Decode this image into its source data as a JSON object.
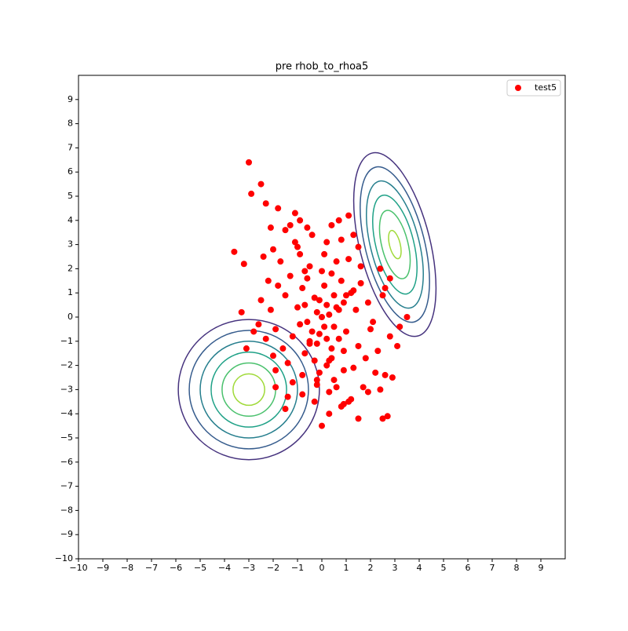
{
  "chart_data": {
    "type": "scatter",
    "title": "pre rhob_to_rhoa5",
    "xlim": [
      -10,
      10
    ],
    "ylim": [
      -10,
      10
    ],
    "xticks": [
      {
        "value": -10,
        "label": "−10"
      },
      {
        "value": -9,
        "label": "−9"
      },
      {
        "value": -8,
        "label": "−8"
      },
      {
        "value": -7,
        "label": "−7"
      },
      {
        "value": -6,
        "label": "−6"
      },
      {
        "value": -5,
        "label": "−5"
      },
      {
        "value": -4,
        "label": "−4"
      },
      {
        "value": -3,
        "label": "−3"
      },
      {
        "value": -2,
        "label": "−2"
      },
      {
        "value": -1,
        "label": "−1"
      },
      0,
      1,
      2,
      3,
      4,
      5,
      6,
      7,
      8,
      9
    ],
    "yticks": [
      {
        "value": -10,
        "label": "−10"
      },
      {
        "value": -9,
        "label": "−9"
      },
      {
        "value": -8,
        "label": "−8"
      },
      {
        "value": -7,
        "label": "−7"
      },
      {
        "value": -6,
        "label": "−6"
      },
      {
        "value": -5,
        "label": "−5"
      },
      {
        "value": -4,
        "label": "−4"
      },
      {
        "value": -3,
        "label": "−3"
      },
      {
        "value": -2,
        "label": "−2"
      },
      {
        "value": -1,
        "label": "−1"
      },
      0,
      1,
      2,
      3,
      4,
      5,
      6,
      7,
      8,
      9
    ],
    "legend": "upper right",
    "contours": [
      {
        "center": [
          -3,
          -3
        ],
        "angle": 0,
        "ellipses": [
          {
            "rx": 2.9,
            "ry": 2.9,
            "color": "#46337e"
          },
          {
            "rx": 2.45,
            "ry": 2.45,
            "color": "#365c8d"
          },
          {
            "rx": 2.0,
            "ry": 2.0,
            "color": "#277f8e"
          },
          {
            "rx": 1.55,
            "ry": 1.55,
            "color": "#1fa187"
          },
          {
            "rx": 1.1,
            "ry": 1.1,
            "color": "#4ac16d"
          },
          {
            "rx": 0.65,
            "ry": 0.65,
            "color": "#a0da39"
          }
        ]
      },
      {
        "center": [
          3,
          3
        ],
        "angle": 14,
        "ellipses": [
          {
            "rx": 1.45,
            "ry": 3.9,
            "color": "#46337e"
          },
          {
            "rx": 1.22,
            "ry": 3.3,
            "color": "#365c8d"
          },
          {
            "rx": 1.0,
            "ry": 2.7,
            "color": "#277f8e"
          },
          {
            "rx": 0.78,
            "ry": 2.1,
            "color": "#1fa187"
          },
          {
            "rx": 0.54,
            "ry": 1.45,
            "color": "#4ac16d"
          },
          {
            "rx": 0.22,
            "ry": 0.6,
            "color": "#a0da39"
          }
        ]
      }
    ],
    "series": [
      {
        "name": "test5",
        "color": "#ff0000",
        "x": [
          0,
          0.2,
          -0.3,
          0.5,
          -0.6,
          0.1,
          -0.2,
          0.4,
          -0.8,
          0.7,
          -0.5,
          0.3,
          -1,
          1,
          0.1,
          -0.1,
          0.6,
          -0.7,
          1.2,
          -1.2,
          0.9,
          -0.9,
          0.2,
          -0.4,
          0.8,
          -1.3,
          1.4,
          1.5,
          -1.5,
          0.5,
          -0.2,
          0.9,
          -0.8,
          1.3,
          -1.4,
          0.3,
          0.6,
          1.1,
          1.6,
          -1.7,
          -1.1,
          1.3,
          0.4,
          -0.6,
          -1.5,
          1.6,
          1.9,
          2,
          1.8,
          2.2,
          -1.9,
          -2.1,
          -1.8,
          -2.2,
          -1.6,
          -1.9,
          -2.3,
          1.7,
          1.2,
          0.8,
          -0.3,
          2.4,
          2.6,
          2.8,
          2.5,
          2.4,
          -2.5,
          -2.6,
          -2.4,
          -2,
          -2.1,
          -1.3,
          -0.9,
          0.7,
          1.5,
          -2.8,
          0.1,
          -0.2,
          0.3,
          -0.1,
          0.2,
          -0.4,
          0.5,
          -0.6,
          0.4,
          0,
          -0.3,
          0.7,
          -0.7,
          0.8,
          -0.9,
          1,
          0.2,
          -0.5,
          -3,
          -2.9,
          -2.5,
          -2.3,
          -3.6,
          -3.2,
          -3.1,
          -3.3,
          0,
          2.7,
          2.5,
          1.5,
          3.5,
          3.1,
          3.2,
          1.1,
          2.8,
          -1.1,
          -1.8,
          -1.2,
          -1.9,
          -2,
          -1.5,
          -0.8,
          0.3,
          0.9,
          1.9,
          2.3,
          2.9,
          2.1,
          2.6,
          -0.1,
          0.6,
          -1,
          1.1,
          -0.5,
          0.4,
          -0.2,
          1.3,
          -1.4,
          0.9,
          -0.7
        ],
        "values": [
          0,
          0.5,
          0.8,
          -0.4,
          -0.2,
          1.3,
          -1.1,
          1.8,
          1.2,
          0.3,
          2.1,
          -1.8,
          0.4,
          -0.6,
          2.6,
          -2.3,
          2.3,
          -1.5,
          1,
          -0.8,
          -1.4,
          2.6,
          3.1,
          3.4,
          3.2,
          1.7,
          0.3,
          -1.2,
          0.9,
          -2.6,
          -2.8,
          -2.2,
          -2.4,
          -2.1,
          -1.9,
          -3.1,
          -2.9,
          2.4,
          2.1,
          2.3,
          3.1,
          3.4,
          3.8,
          3.7,
          3.6,
          1.4,
          0.6,
          -0.5,
          -1.7,
          -2.3,
          -0.5,
          0.3,
          1.3,
          1.5,
          -1.3,
          -2.2,
          -0.9,
          -2.9,
          -3.4,
          -3.7,
          -3.5,
          -3,
          -2.4,
          -0.8,
          0.9,
          2,
          0.7,
          -0.3,
          2.5,
          2.8,
          3.7,
          3.8,
          4,
          4,
          2.9,
          -0.6,
          -0.4,
          0.2,
          0.1,
          0.7,
          -0.9,
          -0.6,
          0.9,
          1.6,
          -1.3,
          1.9,
          -1.8,
          -0.9,
          0.5,
          1.5,
          -0.3,
          0.9,
          -2,
          -1,
          6.4,
          5.1,
          5.5,
          4.7,
          2.7,
          2.2,
          -1.3,
          0.2,
          -4.5,
          -4.1,
          -4.2,
          -4.2,
          0,
          -1.2,
          -0.4,
          4.2,
          1.6,
          4.3,
          4.5,
          -2.7,
          -2.9,
          -1.6,
          -3.8,
          -3.2,
          -4,
          -3.6,
          -3.1,
          -1.4,
          -2.5,
          -0.2,
          1.2,
          -0.7,
          0.4,
          2.9,
          -3.5,
          -1.1,
          -1.7,
          -2.6,
          1.1,
          -3.3,
          0.6,
          1.9
        ]
      }
    ]
  }
}
